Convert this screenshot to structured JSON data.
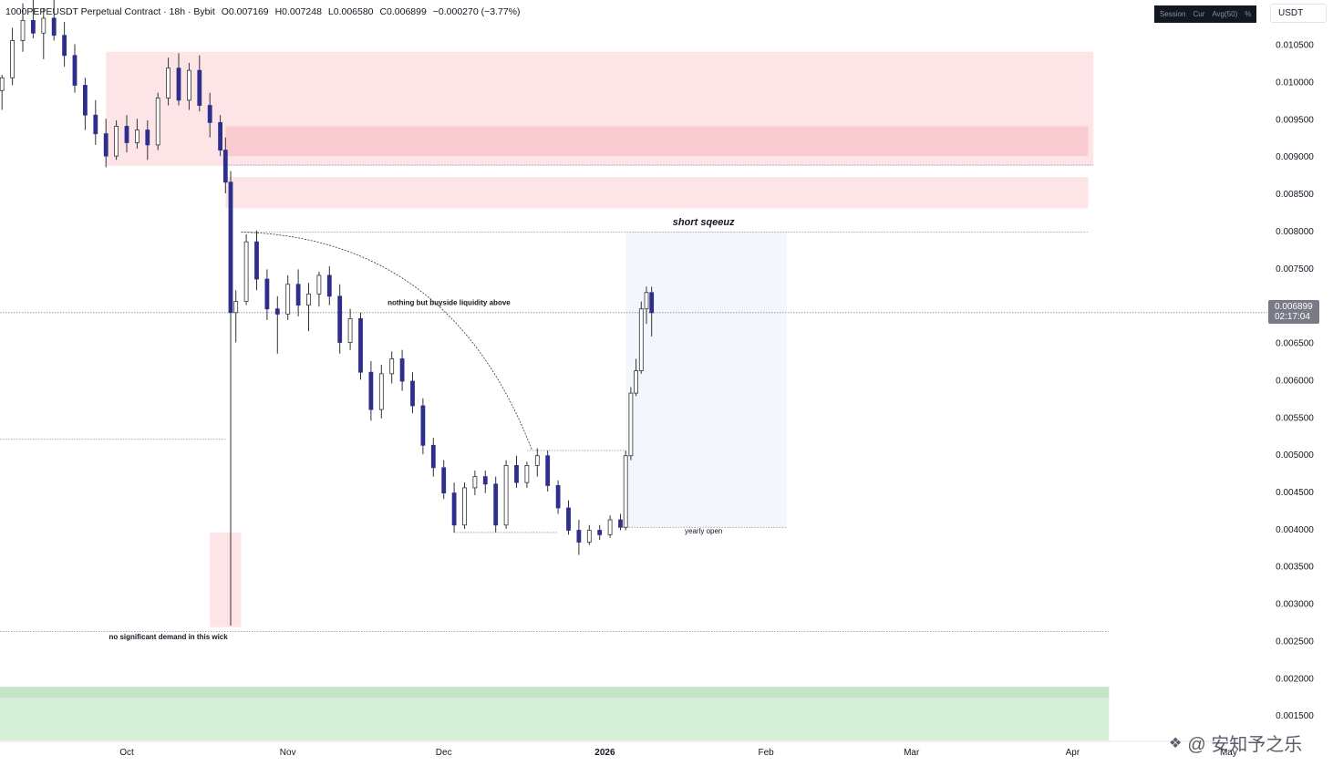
{
  "header": {
    "symbol": "1000PEPEUSDT Perpetual Contract · 18h · Bybit",
    "open": "O0.007169",
    "high": "H0.007248",
    "low": "L0.006580",
    "close": "C0.006899",
    "change": "−0.000270 (−3.77%)"
  },
  "toolbar": {
    "session": "Session",
    "cur": "Cur",
    "avg": "Avg(50)",
    "pct": "%"
  },
  "currency": "USDT",
  "last_price": {
    "price": "0.006899",
    "countdown": "02:17:04"
  },
  "watermark": "@ 安知予之乐",
  "colors": {
    "up": "#ffffff",
    "down": "#2e2e8c",
    "wick": "#333333",
    "supply_zone": "#fde4e7",
    "supply_zone_dark": "#f9ccd2",
    "demand_zone": "#d6efd8",
    "demand_zone_dark": "#c4e6c7",
    "projection": "#f3f6fc"
  },
  "chart_data": {
    "type": "candlestick",
    "symbol": "1000PEPEUSDT",
    "interval": "18h",
    "exchange": "Bybit",
    "y_ticks": [
      0.0105,
      0.01,
      0.0095,
      0.009,
      0.0085,
      0.008,
      0.0075,
      0.007,
      0.0065,
      0.006,
      0.0055,
      0.005,
      0.0045,
      0.004,
      0.0035,
      0.003,
      0.0025,
      0.002,
      0.0015
    ],
    "y_tick_labels": [
      "0.010500",
      "0.010000",
      "0.009500",
      "0.009000",
      "0.008500",
      "0.008000",
      "0.007500",
      "0.007000",
      "0.006500",
      "0.006000",
      "0.005500",
      "0.005000",
      "0.004500",
      "0.004000",
      "0.003500",
      "0.003000",
      "0.002500",
      "0.002000",
      "0.001500"
    ],
    "ylim": [
      0.00116,
      0.011094
    ],
    "x_axis_labels": [
      {
        "label": "Oct",
        "date": "2025-10-01"
      },
      {
        "label": "Nov",
        "date": "2025-11-01"
      },
      {
        "label": "Dec",
        "date": "2025-12-01"
      },
      {
        "label": "2026",
        "date": "2026-01-01"
      },
      {
        "label": "Feb",
        "date": "2026-02-01"
      },
      {
        "label": "Mar",
        "date": "2026-03-01"
      },
      {
        "label": "Apr",
        "date": "2026-04-01"
      },
      {
        "label": "May",
        "date": "2026-05-01"
      }
    ],
    "candles": [
      {
        "date": "2025-09-07",
        "o": 0.00988,
        "h": 0.01009,
        "l": 0.00962,
        "c": 0.01005
      },
      {
        "date": "2025-09-09",
        "o": 0.01005,
        "h": 0.01072,
        "l": 0.00995,
        "c": 0.01055
      },
      {
        "date": "2025-09-11",
        "o": 0.01055,
        "h": 0.01105,
        "l": 0.0104,
        "c": 0.01082
      },
      {
        "date": "2025-09-13",
        "o": 0.01082,
        "h": 0.0111,
        "l": 0.01058,
        "c": 0.01065
      },
      {
        "date": "2025-09-15",
        "o": 0.01065,
        "h": 0.01098,
        "l": 0.0103,
        "c": 0.01085
      },
      {
        "date": "2025-09-17",
        "o": 0.01085,
        "h": 0.0111,
        "l": 0.01055,
        "c": 0.01062
      },
      {
        "date": "2025-09-19",
        "o": 0.01062,
        "h": 0.0108,
        "l": 0.0102,
        "c": 0.01035
      },
      {
        "date": "2025-09-21",
        "o": 0.01035,
        "h": 0.0105,
        "l": 0.00985,
        "c": 0.00995
      },
      {
        "date": "2025-09-23",
        "o": 0.00995,
        "h": 0.01005,
        "l": 0.00935,
        "c": 0.00955
      },
      {
        "date": "2025-09-25",
        "o": 0.00955,
        "h": 0.00975,
        "l": 0.00915,
        "c": 0.0093
      },
      {
        "date": "2025-09-27",
        "o": 0.0093,
        "h": 0.0095,
        "l": 0.00885,
        "c": 0.009
      },
      {
        "date": "2025-09-29",
        "o": 0.009,
        "h": 0.00948,
        "l": 0.00895,
        "c": 0.0094
      },
      {
        "date": "2025-10-01",
        "o": 0.0094,
        "h": 0.00955,
        "l": 0.00905,
        "c": 0.00918
      },
      {
        "date": "2025-10-03",
        "o": 0.00918,
        "h": 0.0095,
        "l": 0.0091,
        "c": 0.00935
      },
      {
        "date": "2025-10-05",
        "o": 0.00935,
        "h": 0.00948,
        "l": 0.00895,
        "c": 0.00915
      },
      {
        "date": "2025-10-07",
        "o": 0.00915,
        "h": 0.00985,
        "l": 0.00908,
        "c": 0.00978
      },
      {
        "date": "2025-10-09",
        "o": 0.00978,
        "h": 0.01032,
        "l": 0.00968,
        "c": 0.01018
      },
      {
        "date": "2025-10-11",
        "o": 0.01018,
        "h": 0.01038,
        "l": 0.00968,
        "c": 0.00975
      },
      {
        "date": "2025-10-13",
        "o": 0.00975,
        "h": 0.01025,
        "l": 0.00962,
        "c": 0.01015
      },
      {
        "date": "2025-10-15",
        "o": 0.01015,
        "h": 0.01035,
        "l": 0.0096,
        "c": 0.00968
      },
      {
        "date": "2025-10-17",
        "o": 0.00968,
        "h": 0.00985,
        "l": 0.00925,
        "c": 0.00945
      },
      {
        "date": "2025-10-19",
        "o": 0.00945,
        "h": 0.00955,
        "l": 0.009,
        "c": 0.00908
      },
      {
        "date": "2025-10-20",
        "o": 0.00908,
        "h": 0.00925,
        "l": 0.0085,
        "c": 0.00865
      },
      {
        "date": "2025-10-21",
        "o": 0.00865,
        "h": 0.0088,
        "l": 0.0027,
        "c": 0.0069
      },
      {
        "date": "2025-10-22",
        "o": 0.0069,
        "h": 0.0072,
        "l": 0.0065,
        "c": 0.00705
      },
      {
        "date": "2025-10-24",
        "o": 0.00705,
        "h": 0.00795,
        "l": 0.007,
        "c": 0.00785
      },
      {
        "date": "2025-10-26",
        "o": 0.00785,
        "h": 0.008,
        "l": 0.0072,
        "c": 0.00735
      },
      {
        "date": "2025-10-28",
        "o": 0.00735,
        "h": 0.00748,
        "l": 0.0068,
        "c": 0.00695
      },
      {
        "date": "2025-10-30",
        "o": 0.00695,
        "h": 0.00712,
        "l": 0.00635,
        "c": 0.00688
      },
      {
        "date": "2025-11-01",
        "o": 0.00688,
        "h": 0.0074,
        "l": 0.0068,
        "c": 0.00728
      },
      {
        "date": "2025-11-03",
        "o": 0.00728,
        "h": 0.00748,
        "l": 0.00685,
        "c": 0.007
      },
      {
        "date": "2025-11-05",
        "o": 0.007,
        "h": 0.0073,
        "l": 0.00665,
        "c": 0.00715
      },
      {
        "date": "2025-11-07",
        "o": 0.00715,
        "h": 0.00745,
        "l": 0.00698,
        "c": 0.0074
      },
      {
        "date": "2025-11-09",
        "o": 0.0074,
        "h": 0.00752,
        "l": 0.007,
        "c": 0.00712
      },
      {
        "date": "2025-11-11",
        "o": 0.00712,
        "h": 0.00728,
        "l": 0.00635,
        "c": 0.0065
      },
      {
        "date": "2025-11-13",
        "o": 0.0065,
        "h": 0.00695,
        "l": 0.0064,
        "c": 0.00682
      },
      {
        "date": "2025-11-15",
        "o": 0.00682,
        "h": 0.0069,
        "l": 0.006,
        "c": 0.0061
      },
      {
        "date": "2025-11-17",
        "o": 0.0061,
        "h": 0.00625,
        "l": 0.00545,
        "c": 0.0056
      },
      {
        "date": "2025-11-19",
        "o": 0.0056,
        "h": 0.0062,
        "l": 0.00548,
        "c": 0.00608
      },
      {
        "date": "2025-11-21",
        "o": 0.00608,
        "h": 0.00638,
        "l": 0.00595,
        "c": 0.00628
      },
      {
        "date": "2025-11-23",
        "o": 0.00628,
        "h": 0.0064,
        "l": 0.00585,
        "c": 0.00598
      },
      {
        "date": "2025-11-25",
        "o": 0.00598,
        "h": 0.0061,
        "l": 0.00555,
        "c": 0.00565
      },
      {
        "date": "2025-11-27",
        "o": 0.00565,
        "h": 0.00575,
        "l": 0.005,
        "c": 0.00512
      },
      {
        "date": "2025-11-29",
        "o": 0.00512,
        "h": 0.00522,
        "l": 0.0047,
        "c": 0.00482
      },
      {
        "date": "2025-12-01",
        "o": 0.00482,
        "h": 0.00492,
        "l": 0.0044,
        "c": 0.00448
      },
      {
        "date": "2025-12-03",
        "o": 0.00448,
        "h": 0.00462,
        "l": 0.00395,
        "c": 0.00405
      },
      {
        "date": "2025-12-05",
        "o": 0.00405,
        "h": 0.00462,
        "l": 0.004,
        "c": 0.00455
      },
      {
        "date": "2025-12-07",
        "o": 0.00455,
        "h": 0.00478,
        "l": 0.00445,
        "c": 0.0047
      },
      {
        "date": "2025-12-09",
        "o": 0.0047,
        "h": 0.00478,
        "l": 0.00448,
        "c": 0.0046
      },
      {
        "date": "2025-12-11",
        "o": 0.0046,
        "h": 0.0047,
        "l": 0.00395,
        "c": 0.00405
      },
      {
        "date": "2025-12-13",
        "o": 0.00405,
        "h": 0.00492,
        "l": 0.004,
        "c": 0.00485
      },
      {
        "date": "2025-12-15",
        "o": 0.00485,
        "h": 0.00498,
        "l": 0.00455,
        "c": 0.00462
      },
      {
        "date": "2025-12-17",
        "o": 0.00462,
        "h": 0.0049,
        "l": 0.00455,
        "c": 0.00485
      },
      {
        "date": "2025-12-19",
        "o": 0.00485,
        "h": 0.00508,
        "l": 0.0047,
        "c": 0.00498
      },
      {
        "date": "2025-12-21",
        "o": 0.00498,
        "h": 0.00505,
        "l": 0.0045,
        "c": 0.00458
      },
      {
        "date": "2025-12-23",
        "o": 0.00458,
        "h": 0.00465,
        "l": 0.0042,
        "c": 0.00428
      },
      {
        "date": "2025-12-25",
        "o": 0.00428,
        "h": 0.00438,
        "l": 0.00392,
        "c": 0.00398
      },
      {
        "date": "2025-12-27",
        "o": 0.00398,
        "h": 0.00412,
        "l": 0.00365,
        "c": 0.00382
      },
      {
        "date": "2025-12-29",
        "o": 0.00382,
        "h": 0.00405,
        "l": 0.00378,
        "c": 0.00398
      },
      {
        "date": "2025-12-31",
        "o": 0.00398,
        "h": 0.00405,
        "l": 0.00385,
        "c": 0.00392
      },
      {
        "date": "2026-01-02",
        "o": 0.00392,
        "h": 0.00418,
        "l": 0.00388,
        "c": 0.00412
      },
      {
        "date": "2026-01-04",
        "o": 0.00412,
        "h": 0.0042,
        "l": 0.00398,
        "c": 0.00402
      },
      {
        "date": "2026-01-05",
        "o": 0.00402,
        "h": 0.00505,
        "l": 0.00398,
        "c": 0.00498
      },
      {
        "date": "2026-01-06",
        "o": 0.00498,
        "h": 0.0059,
        "l": 0.00492,
        "c": 0.00582
      },
      {
        "date": "2026-01-07",
        "o": 0.00582,
        "h": 0.00628,
        "l": 0.00578,
        "c": 0.00612
      },
      {
        "date": "2026-01-08",
        "o": 0.00612,
        "h": 0.00705,
        "l": 0.00608,
        "c": 0.00695
      },
      {
        "date": "2026-01-09",
        "o": 0.00695,
        "h": 0.00725,
        "l": 0.00675,
        "c": 0.00717
      },
      {
        "date": "2026-01-10",
        "o": 0.007169,
        "h": 0.007248,
        "l": 0.00658,
        "c": 0.006899
      }
    ],
    "zones": [
      {
        "kind": "supply",
        "from": "2025-09-27",
        "to": "2026-04-05",
        "high": 0.0104,
        "low": 0.00887
      },
      {
        "kind": "supply-inner",
        "from": "2025-10-20",
        "to": "2026-04-04",
        "high": 0.0094,
        "low": 0.009
      },
      {
        "kind": "supply",
        "from": "2025-10-20",
        "to": "2026-04-04",
        "high": 0.00872,
        "low": 0.0083
      },
      {
        "kind": "wick-zone",
        "from": "2025-10-17",
        "to": "2025-10-23",
        "high": 0.00395,
        "low": 0.00268
      },
      {
        "kind": "demand",
        "from": "2025-09-01",
        "to": "2026-04-08",
        "high": 0.00188,
        "low": 0.001
      },
      {
        "kind": "projection",
        "from": "2026-01-05",
        "to": "2026-02-05",
        "high": 0.00798,
        "low": 0.00402
      }
    ],
    "levels": [
      {
        "price": 0.00888,
        "from": "2025-10-20",
        "to": "2026-04-05"
      },
      {
        "price": 0.00798,
        "from": "2025-10-23",
        "to": "2026-04-04"
      },
      {
        "price": 0.0069,
        "from": "2025-09-01",
        "to": "2026-05-20"
      },
      {
        "price": 0.0052,
        "from": "2025-09-01",
        "to": "2025-10-20"
      },
      {
        "price": 0.00505,
        "from": "2025-12-17",
        "to": "2026-01-05"
      },
      {
        "price": 0.00395,
        "from": "2025-12-03",
        "to": "2025-12-23"
      },
      {
        "price": 0.00402,
        "from": "2026-01-04",
        "to": "2026-02-05"
      },
      {
        "price": 0.00262,
        "from": "2025-09-01",
        "to": "2026-04-08"
      }
    ],
    "curve": {
      "from": {
        "date": "2025-10-23",
        "price": 0.00798
      },
      "to": {
        "date": "2025-12-18",
        "price": 0.00505
      }
    },
    "annotations": [
      {
        "text": "short sqeeuz",
        "date": "2026-01-20",
        "price": 0.00807,
        "style": "bold-italic"
      },
      {
        "text": "nothing but buyside liquidity above",
        "date": "2025-12-02",
        "price": 0.007,
        "style": "bold"
      },
      {
        "text": "yearly open",
        "date": "2026-01-20",
        "price": 0.00394,
        "style": "normal"
      },
      {
        "text": "no significant demand in this wick",
        "date": "2025-10-09",
        "price": 0.00252,
        "style": "bold"
      }
    ]
  }
}
